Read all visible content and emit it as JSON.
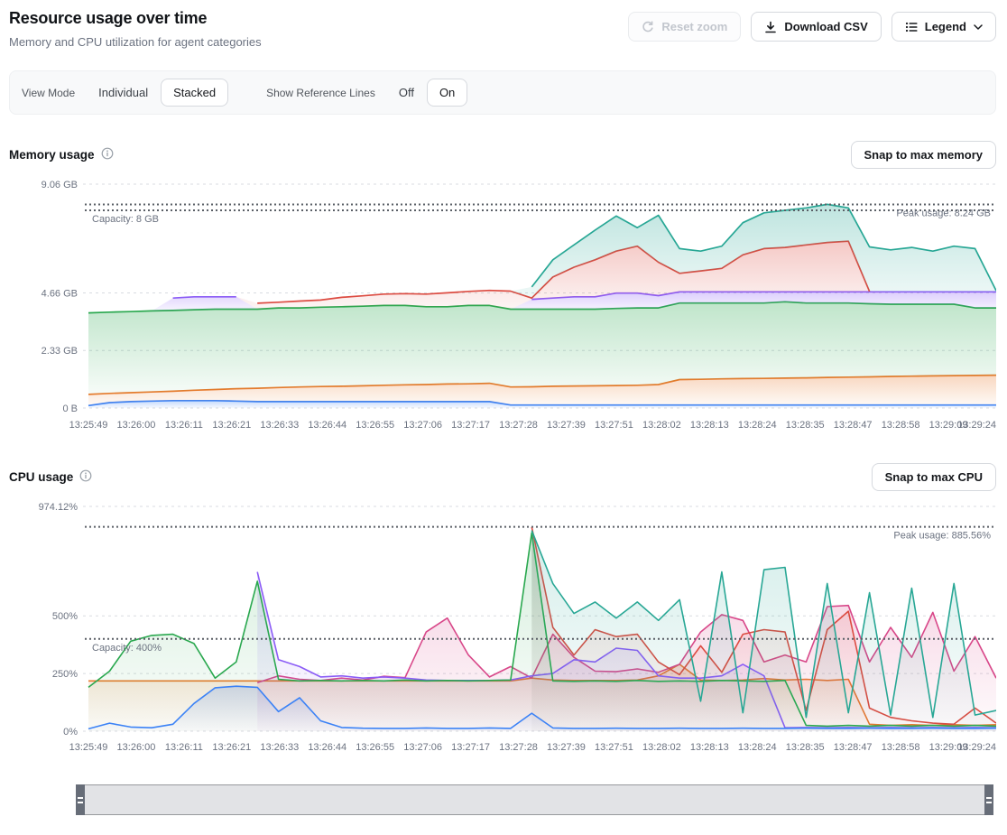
{
  "header": {
    "title": "Resource usage over time",
    "subtitle": "Memory and CPU utilization for agent categories",
    "buttons": {
      "reset_zoom": "Reset zoom",
      "download_csv": "Download CSV",
      "legend": "Legend"
    }
  },
  "controls": {
    "view_mode_label": "View Mode",
    "view_mode_options": [
      "Individual",
      "Stacked"
    ],
    "view_mode_selected": "Stacked",
    "reference_lines_label": "Show Reference Lines",
    "reference_lines_options": [
      "Off",
      "On"
    ],
    "reference_lines_selected": "On"
  },
  "memory_section": {
    "title": "Memory usage",
    "snap_button": "Snap to max memory"
  },
  "cpu_section": {
    "title": "CPU usage",
    "snap_button": "Snap to max CPU"
  },
  "chart_data": [
    {
      "type": "area",
      "stacked": true,
      "title": "Memory usage",
      "unit": "GB",
      "ylim": [
        0,
        9.06
      ],
      "yticks": [
        {
          "value": 0,
          "label": "0 B"
        },
        {
          "value": 2.33,
          "label": "2.33 GB"
        },
        {
          "value": 4.66,
          "label": "4.66 GB"
        },
        {
          "value": 9.06,
          "label": "9.06 GB"
        }
      ],
      "reference_lines": [
        {
          "value": 8,
          "label": "Capacity: 8 GB",
          "label_position": "left"
        },
        {
          "value": 8.24,
          "label": "Peak usage: 8.24 GB",
          "label_position": "right"
        }
      ],
      "x_labels": [
        "13:25:49",
        "13:26:00",
        "13:26:11",
        "13:26:21",
        "13:26:33",
        "13:26:44",
        "13:26:55",
        "13:27:06",
        "13:27:17",
        "13:27:28",
        "13:27:39",
        "13:27:51",
        "13:28:02",
        "13:28:13",
        "13:28:24",
        "13:28:35",
        "13:28:47",
        "13:28:58",
        "13:29:09",
        "13:29:24"
      ],
      "series": [
        {
          "name": "blue",
          "color": "#3b82f6",
          "values": [
            0.1,
            0.22,
            0.26,
            0.28,
            0.3,
            0.3,
            0.3,
            0.28,
            0.26,
            0.26,
            0.26,
            0.26,
            0.26,
            0.26,
            0.26,
            0.26,
            0.26,
            0.26,
            0.26,
            0.26,
            0.12,
            0.12,
            0.12,
            0.12,
            0.12,
            0.12,
            0.12,
            0.12,
            0.12,
            0.12,
            0.12,
            0.12,
            0.12,
            0.12,
            0.12,
            0.12,
            0.12,
            0.12,
            0.12,
            0.12,
            0.12,
            0.12,
            0.12,
            0.12
          ]
        },
        {
          "name": "orange",
          "color": "#e87a2c",
          "values": [
            0.45,
            0.37,
            0.36,
            0.37,
            0.38,
            0.42,
            0.45,
            0.5,
            0.54,
            0.57,
            0.59,
            0.61,
            0.62,
            0.64,
            0.66,
            0.68,
            0.69,
            0.71,
            0.72,
            0.74,
            0.73,
            0.74,
            0.76,
            0.77,
            0.78,
            0.79,
            0.8,
            0.83,
            1.03,
            1.04,
            1.06,
            1.07,
            1.08,
            1.09,
            1.1,
            1.12,
            1.13,
            1.14,
            1.16,
            1.17,
            1.18,
            1.19,
            1.2,
            1.21
          ]
        },
        {
          "name": "green",
          "color": "#2aa84f",
          "values": [
            3.3,
            3.29,
            3.28,
            3.28,
            3.27,
            3.26,
            3.25,
            3.22,
            3.2,
            3.22,
            3.2,
            3.21,
            3.22,
            3.22,
            3.23,
            3.21,
            3.15,
            3.13,
            3.17,
            3.15,
            3.15,
            3.14,
            3.12,
            3.11,
            3.1,
            3.12,
            3.13,
            3.1,
            3.1,
            3.09,
            3.07,
            3.06,
            3.05,
            3.09,
            3.03,
            3.01,
            3.0,
            2.96,
            2.92,
            2.91,
            2.9,
            2.89,
            2.73,
            2.72
          ]
        },
        {
          "name": "purple",
          "color": "#8b5cf6",
          "values": [
            null,
            null,
            null,
            null,
            0.5,
            0.52,
            0.5,
            0.5,
            null,
            null,
            null,
            null,
            null,
            null,
            null,
            null,
            null,
            null,
            null,
            null,
            null,
            0.4,
            0.45,
            0.5,
            0.5,
            0.62,
            0.6,
            0.5,
            0.45,
            0.45,
            0.45,
            0.45,
            0.45,
            0.4,
            0.45,
            0.45,
            0.45,
            0.48,
            0.5,
            0.5,
            0.5,
            0.5,
            0.65,
            0.65
          ]
        },
        {
          "name": "red",
          "color": "#dc4b41",
          "values": [
            null,
            null,
            null,
            null,
            null,
            null,
            null,
            null,
            0.24,
            0.23,
            0.28,
            0.29,
            0.38,
            0.42,
            0.46,
            0.48,
            0.51,
            0.56,
            0.57,
            0.61,
            0.73,
            0.05,
            0.85,
            1.2,
            1.5,
            1.7,
            1.9,
            1.35,
            0.75,
            0.85,
            0.95,
            1.5,
            1.75,
            1.8,
            1.9,
            2.0,
            2.05,
            0.02,
            null,
            null,
            null,
            null,
            null,
            null
          ]
        },
        {
          "name": "teal",
          "color": "#28a795",
          "values": [
            null,
            null,
            null,
            null,
            null,
            null,
            null,
            null,
            null,
            null,
            null,
            null,
            null,
            null,
            null,
            null,
            null,
            null,
            null,
            null,
            null,
            0.45,
            0.7,
            0.9,
            1.2,
            1.42,
            0.75,
            1.9,
            1.0,
            0.8,
            0.9,
            1.3,
            1.45,
            1.5,
            1.5,
            1.54,
            1.35,
            1.8,
            1.7,
            1.8,
            1.65,
            1.85,
            1.75,
            0.05
          ]
        }
      ]
    },
    {
      "type": "line",
      "stacked": false,
      "title": "CPU usage",
      "unit": "%",
      "ylim": [
        0,
        974.12
      ],
      "yticks": [
        {
          "value": 0,
          "label": "0%"
        },
        {
          "value": 250,
          "label": "250%"
        },
        {
          "value": 500,
          "label": "500%"
        },
        {
          "value": 974.12,
          "label": "974.12%"
        }
      ],
      "reference_lines": [
        {
          "value": 400,
          "label": "Capacity: 400%",
          "label_position": "left"
        },
        {
          "value": 885.56,
          "label": "Peak usage: 885.56%",
          "label_position": "right"
        }
      ],
      "x_labels": [
        "13:25:49",
        "13:26:00",
        "13:26:11",
        "13:26:21",
        "13:26:33",
        "13:26:44",
        "13:26:55",
        "13:27:06",
        "13:27:17",
        "13:27:28",
        "13:27:39",
        "13:27:51",
        "13:28:02",
        "13:28:13",
        "13:28:24",
        "13:28:35",
        "13:28:47",
        "13:28:58",
        "13:29:09",
        "13:29:24"
      ],
      "series": [
        {
          "name": "orange",
          "color": "#e87a2c",
          "values": [
            218,
            218,
            218,
            218,
            218,
            218,
            218,
            218,
            218,
            218,
            218,
            218,
            218,
            218,
            218,
            218,
            218,
            218,
            218,
            218,
            218,
            230,
            222,
            220,
            220,
            220,
            222,
            240,
            290,
            222,
            220,
            222,
            228,
            222,
            225,
            220,
            225,
            30,
            25,
            28,
            25,
            28,
            25,
            28
          ]
        },
        {
          "name": "magenta",
          "color": "#d84789",
          "values": [
            null,
            null,
            null,
            null,
            null,
            null,
            null,
            null,
            210,
            240,
            225,
            220,
            230,
            222,
            238,
            232,
            430,
            490,
            330,
            235,
            280,
            230,
            420,
            320,
            260,
            258,
            270,
            255,
            290,
            430,
            505,
            480,
            300,
            330,
            300,
            540,
            545,
            300,
            450,
            320,
            515,
            260,
            410,
            230
          ]
        },
        {
          "name": "red",
          "color": "#dc4b41",
          "values": [
            null,
            null,
            null,
            null,
            null,
            null,
            null,
            null,
            null,
            null,
            null,
            null,
            null,
            null,
            null,
            null,
            null,
            null,
            null,
            null,
            null,
            885,
            450,
            330,
            440,
            410,
            420,
            300,
            245,
            370,
            255,
            420,
            440,
            430,
            90,
            440,
            520,
            100,
            60,
            45,
            35,
            30,
            100,
            35
          ]
        },
        {
          "name": "purple",
          "color": "#8b5cf6",
          "values": [
            null,
            null,
            null,
            null,
            null,
            null,
            null,
            null,
            690,
            310,
            280,
            235,
            240,
            230,
            235,
            230,
            222,
            220,
            220,
            220,
            222,
            240,
            250,
            310,
            300,
            360,
            350,
            240,
            230,
            230,
            240,
            290,
            240,
            15,
            16,
            15,
            16,
            15,
            16,
            15,
            16,
            15,
            16,
            15
          ]
        },
        {
          "name": "green",
          "color": "#2aa84f",
          "values": [
            190,
            260,
            390,
            415,
            420,
            380,
            230,
            300,
            650,
            225,
            218,
            220,
            218,
            220,
            218,
            222,
            218,
            220,
            218,
            220,
            222,
            860,
            218,
            216,
            218,
            216,
            220,
            216,
            218,
            216,
            220,
            218,
            216,
            220,
            25,
            22,
            25,
            22,
            25,
            22,
            25,
            22,
            25,
            22
          ]
        },
        {
          "name": "teal",
          "color": "#28a795",
          "values": [
            null,
            null,
            null,
            null,
            null,
            null,
            null,
            null,
            null,
            null,
            null,
            null,
            null,
            null,
            null,
            null,
            null,
            null,
            null,
            null,
            null,
            870,
            640,
            510,
            560,
            490,
            560,
            480,
            570,
            130,
            690,
            80,
            700,
            710,
            60,
            640,
            80,
            600,
            70,
            620,
            60,
            640,
            70,
            90
          ]
        },
        {
          "name": "blue",
          "color": "#3b82f6",
          "values": [
            10,
            35,
            18,
            15,
            30,
            120,
            188,
            195,
            190,
            85,
            145,
            45,
            16,
            13,
            12,
            12,
            14,
            12,
            12,
            14,
            12,
            78,
            14,
            12,
            12,
            13,
            12,
            12,
            13,
            12,
            12,
            13,
            12,
            12,
            13,
            12,
            12,
            13,
            12,
            12,
            13,
            12,
            12,
            13
          ]
        }
      ]
    }
  ]
}
